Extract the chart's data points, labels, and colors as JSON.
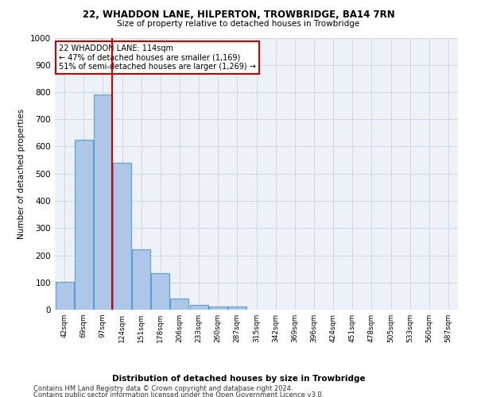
{
  "title1": "22, WHADDON LANE, HILPERTON, TROWBRIDGE, BA14 7RN",
  "title2": "Size of property relative to detached houses in Trowbridge",
  "xlabel": "Distribution of detached houses by size in Trowbridge",
  "ylabel": "Number of detached properties",
  "bins": [
    "42sqm",
    "69sqm",
    "97sqm",
    "124sqm",
    "151sqm",
    "178sqm",
    "206sqm",
    "233sqm",
    "260sqm",
    "287sqm",
    "315sqm",
    "342sqm",
    "369sqm",
    "396sqm",
    "424sqm",
    "451sqm",
    "478sqm",
    "505sqm",
    "533sqm",
    "560sqm",
    "587sqm"
  ],
  "values": [
    103,
    625,
    790,
    540,
    223,
    133,
    42,
    17,
    12,
    12,
    0,
    0,
    0,
    0,
    0,
    0,
    0,
    0,
    0,
    0,
    0
  ],
  "bar_color": "#aec6e8",
  "bar_edge_color": "#5a9fd4",
  "vline_x": 2.5,
  "annotation_title": "22 WHADDON LANE: 114sqm",
  "annotation_line1": "← 47% of detached houses are smaller (1,169)",
  "annotation_line2": "51% of semi-detached houses are larger (1,269) →",
  "annotation_box_color": "#ffffff",
  "annotation_box_edge_color": "#cc0000",
  "vline_color": "#cc0000",
  "grid_color": "#d0d8e8",
  "background_color": "#eef2f8",
  "footer1": "Contains HM Land Registry data © Crown copyright and database right 2024.",
  "footer2": "Contains public sector information licensed under the Open Government Licence v3.0.",
  "ylim": [
    0,
    1000
  ],
  "yticks": [
    0,
    100,
    200,
    300,
    400,
    500,
    600,
    700,
    800,
    900,
    1000
  ]
}
